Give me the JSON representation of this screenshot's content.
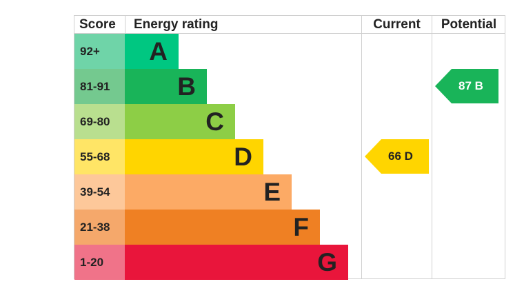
{
  "header": {
    "score": "Score",
    "energy_rating": "Energy rating",
    "current": "Current",
    "potential": "Potential"
  },
  "bands": [
    {
      "score": "92+",
      "letter": "A",
      "color": "#00c781",
      "score_bg": "#6fd4a8",
      "min": 92
    },
    {
      "score": "81-91",
      "letter": "B",
      "color": "#19b459",
      "score_bg": "#74c98f",
      "min": 81
    },
    {
      "score": "69-80",
      "letter": "C",
      "color": "#8dce46",
      "score_bg": "#b9df8f",
      "min": 69
    },
    {
      "score": "55-68",
      "letter": "D",
      "color": "#ffd500",
      "score_bg": "#ffe566",
      "min": 55
    },
    {
      "score": "39-54",
      "letter": "E",
      "color": "#fcaa65",
      "score_bg": "#fdc89a",
      "min": 39
    },
    {
      "score": "21-38",
      "letter": "F",
      "color": "#ef8023",
      "score_bg": "#f5a86b",
      "min": 21
    },
    {
      "score": "1-20",
      "letter": "G",
      "color": "#e9153b",
      "score_bg": "#f07389",
      "min": 1
    }
  ],
  "current": {
    "label": "66 D",
    "value": 66,
    "band": "D",
    "color": "#ffd500",
    "text_color": "#222222"
  },
  "potential": {
    "label": "87 B",
    "value": 87,
    "band": "B",
    "color": "#19b459",
    "text_color": "#ffffff"
  },
  "chart_data": {
    "type": "bar",
    "categories": [
      "A",
      "B",
      "C",
      "D",
      "E",
      "F",
      "G"
    ],
    "score_ranges": [
      "92+",
      "81-91",
      "69-80",
      "55-68",
      "39-54",
      "21-38",
      "1-20"
    ],
    "current": 66,
    "potential": 87
  }
}
